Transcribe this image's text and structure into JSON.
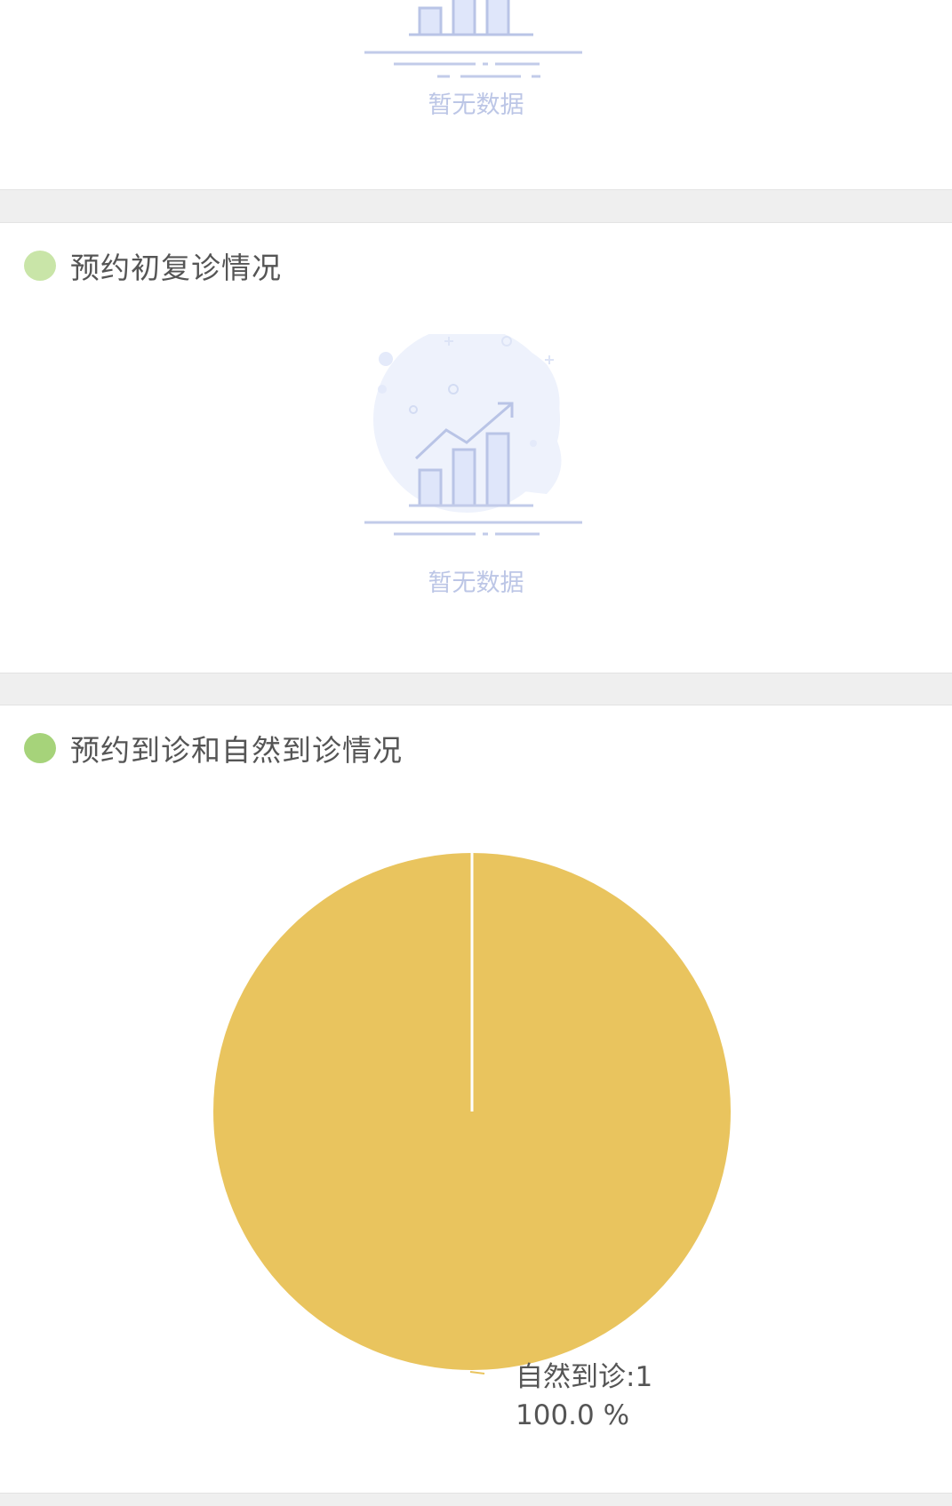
{
  "sections": {
    "top": {
      "empty_text": "暂无数据"
    },
    "revisit": {
      "title": "预约初复诊情况",
      "dot_color": "#c9e5a8",
      "empty_text": "暂无数据"
    },
    "arrival": {
      "title": "预约到诊和自然到诊情况",
      "dot_color": "#a6d37a"
    }
  },
  "empty_state": {
    "icon": "chart-empty-icon",
    "text_color": "#bcc6e6"
  },
  "chart_data": {
    "type": "pie",
    "slices": [
      {
        "label": "自然到诊",
        "value": 1,
        "percent": 100.0,
        "color": "#e9c45e"
      }
    ],
    "labels": {
      "line1": "自然到诊:1",
      "line2": "100.0 %"
    }
  }
}
